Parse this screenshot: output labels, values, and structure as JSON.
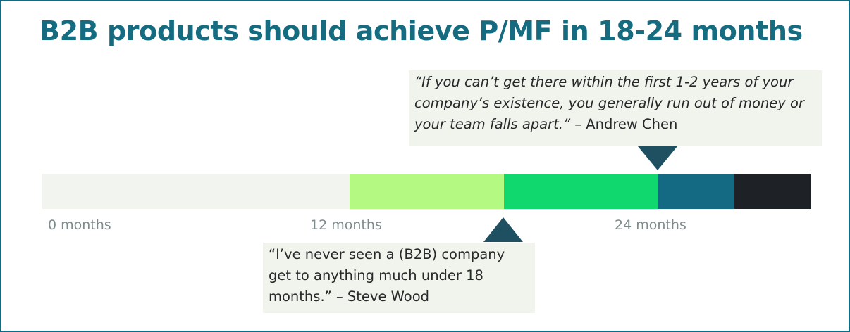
{
  "title": "B2B products should achieve P/MF in 18-24 months",
  "colors": {
    "title": "#156b80",
    "border": "#136a80",
    "marker": "#1e5062",
    "quote_background": "#f1f4ec"
  },
  "timeline": {
    "unit": "months",
    "segments": [
      {
        "start": 0,
        "end": 12,
        "color": "#f2f4ef"
      },
      {
        "start": 12,
        "end": 18,
        "color": "#b4fa82"
      },
      {
        "start": 18,
        "end": 24,
        "color": "#10d86e"
      },
      {
        "start": 24,
        "end": 27,
        "color": "#146a82"
      },
      {
        "start": 27,
        "end": 30,
        "color": "#1e2227"
      }
    ],
    "ticks": [
      {
        "value": 0,
        "label": "0 months"
      },
      {
        "value": 12,
        "label": "12 months"
      },
      {
        "value": 24,
        "label": "24 months"
      }
    ]
  },
  "quotes": {
    "top": {
      "marker_month": 24,
      "marker_direction": "down",
      "text": "“If you can’t get there within the first 1-2 years of your company’s existence, you generally run out of money or your team falls apart.”",
      "author": "– Andrew Chen"
    },
    "bottom": {
      "marker_month": 18,
      "marker_direction": "up",
      "text": "“I’ve never seen a (B2B) company get to anything much under 18 months.”",
      "author": "– Steve Wood"
    }
  }
}
